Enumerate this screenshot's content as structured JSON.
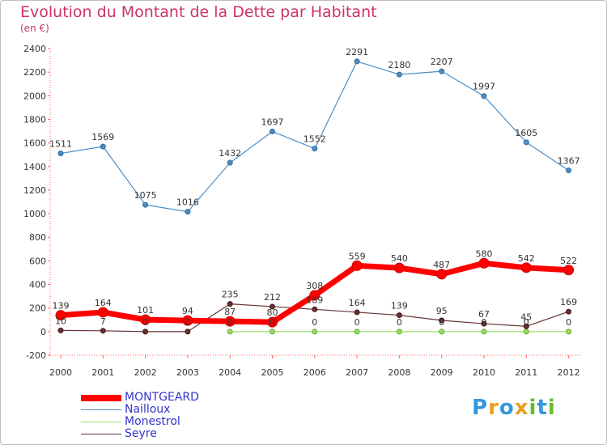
{
  "title": "Evolution du Montant de la Dette par Habitant",
  "unit_label": "(en €)",
  "logo": {
    "text": "Proxiti",
    "letters": [
      {
        "ch": "P",
        "color": "#3399dd"
      },
      {
        "ch": "r",
        "color": "#e8a020"
      },
      {
        "ch": "o",
        "color": "#3399dd"
      },
      {
        "ch": "x",
        "color": "#e8a020"
      },
      {
        "ch": "i",
        "color": "#66bb33"
      },
      {
        "ch": "t",
        "color": "#3399dd"
      },
      {
        "ch": "i",
        "color": "#66bb33"
      }
    ]
  },
  "chart_data": {
    "type": "line",
    "title": "Evolution du Montant de la Dette par Habitant",
    "ylabel": "(en €)",
    "xlabel": "",
    "x": [
      "2000",
      "2001",
      "2002",
      "2003",
      "2004",
      "2005",
      "2006",
      "2007",
      "2008",
      "2009",
      "2010",
      "2011",
      "2012"
    ],
    "ylim": [
      -200,
      2400
    ],
    "yticks": [
      -200,
      0,
      200,
      400,
      600,
      800,
      1000,
      1200,
      1400,
      1600,
      1800,
      2000,
      2200,
      2400
    ],
    "grid": false,
    "legend_position": "bottom-left",
    "series": [
      {
        "name": "MONTGEARD",
        "color": "#ff0000",
        "values": [
          139,
          164,
          101,
          94,
          87,
          80,
          308,
          559,
          540,
          487,
          580,
          542,
          522
        ]
      },
      {
        "name": "Nailloux",
        "color": "#4d8ec4",
        "values": [
          1511,
          1569,
          1075,
          1016,
          1432,
          1697,
          1552,
          2291,
          2180,
          2207,
          1997,
          1605,
          1367
        ]
      },
      {
        "name": "Monestrol",
        "color": "#99dd66",
        "values": [
          null,
          null,
          null,
          null,
          0,
          0,
          0,
          0,
          0,
          0,
          0,
          0,
          0
        ]
      },
      {
        "name": "Seyre",
        "color": "#663333",
        "values": [
          10,
          7,
          0,
          0,
          235,
          212,
          189,
          164,
          139,
          95,
          67,
          45,
          169
        ]
      }
    ]
  }
}
